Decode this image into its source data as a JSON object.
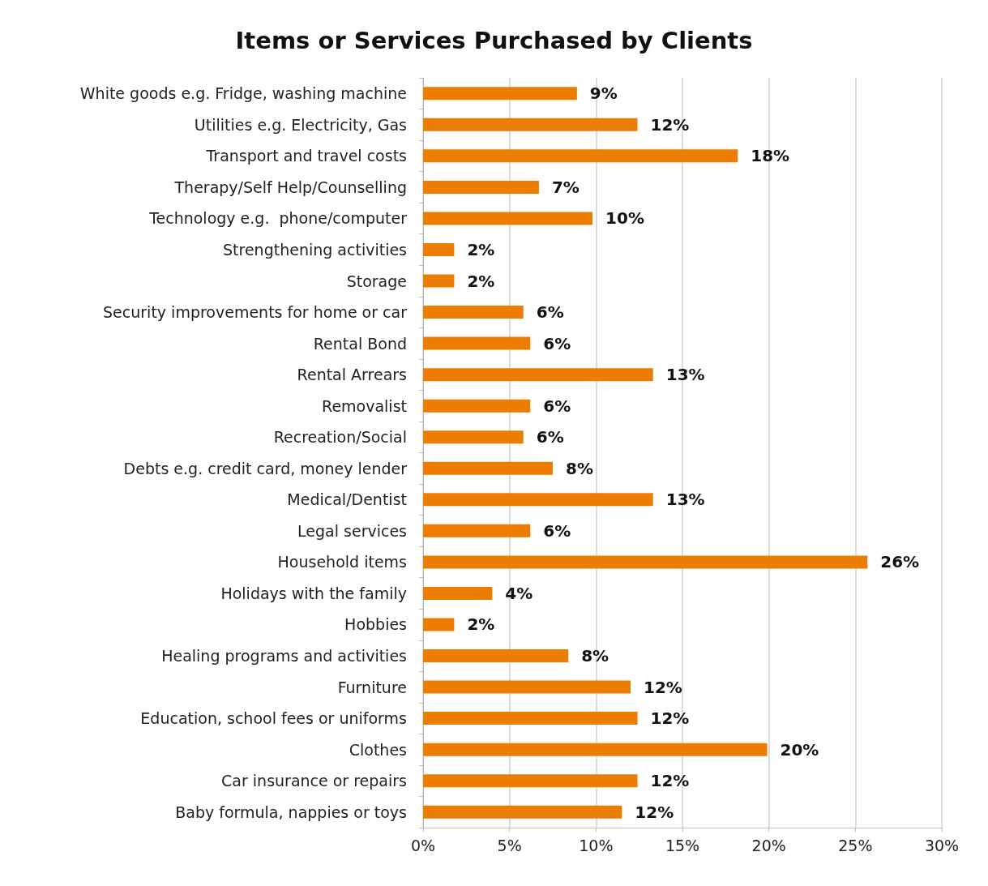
{
  "chart_data": {
    "type": "bar",
    "orientation": "horizontal",
    "title": "Items or Services Purchased by Clients",
    "categories": [
      "White goods e.g. Fridge, washing machine",
      "Utilities e.g. Electricity, Gas",
      "Transport and travel costs",
      "Therapy/Self Help/Counselling",
      "Technology e.g.  phone/computer",
      "Strengthening activities",
      "Storage",
      "Security improvements for home or car",
      "Rental Bond",
      "Rental Arrears",
      "Removalist",
      "Recreation/Social",
      "Debts e.g. credit card, money lender",
      "Medical/Dentist",
      "Legal services",
      "Household items",
      "Holidays with the family",
      "Hobbies",
      "Healing programs and activities",
      "Furniture",
      "Education, school fees or uniforms",
      "Clothes",
      "Car insurance or repairs",
      "Baby formula, nappies or toys"
    ],
    "values": [
      8.9,
      12.4,
      18.2,
      6.7,
      9.8,
      1.8,
      1.8,
      5.8,
      6.2,
      13.3,
      6.2,
      5.8,
      7.5,
      13.3,
      6.2,
      25.7,
      4.0,
      1.8,
      8.4,
      12.0,
      12.4,
      19.9,
      12.4,
      11.5
    ],
    "value_labels": [
      "9%",
      "12%",
      "18%",
      "7%",
      "10%",
      "2%",
      "2%",
      "6%",
      "6%",
      "13%",
      "6%",
      "6%",
      "8%",
      "13%",
      "6%",
      "26%",
      "4%",
      "2%",
      "8%",
      "12%",
      "12%",
      "20%",
      "12%",
      "12%"
    ],
    "color": "#ed7d00",
    "xlim": [
      0,
      30
    ],
    "xticks": [
      {
        "value": 0,
        "label": "0%"
      },
      {
        "value": 5,
        "label": "5%"
      },
      {
        "value": 10,
        "label": "10%"
      },
      {
        "value": 15,
        "label": "15%"
      },
      {
        "value": 20,
        "label": "20%"
      },
      {
        "value": 25,
        "label": "25%"
      },
      {
        "value": 30,
        "label": "30%"
      }
    ],
    "grid": "x"
  }
}
